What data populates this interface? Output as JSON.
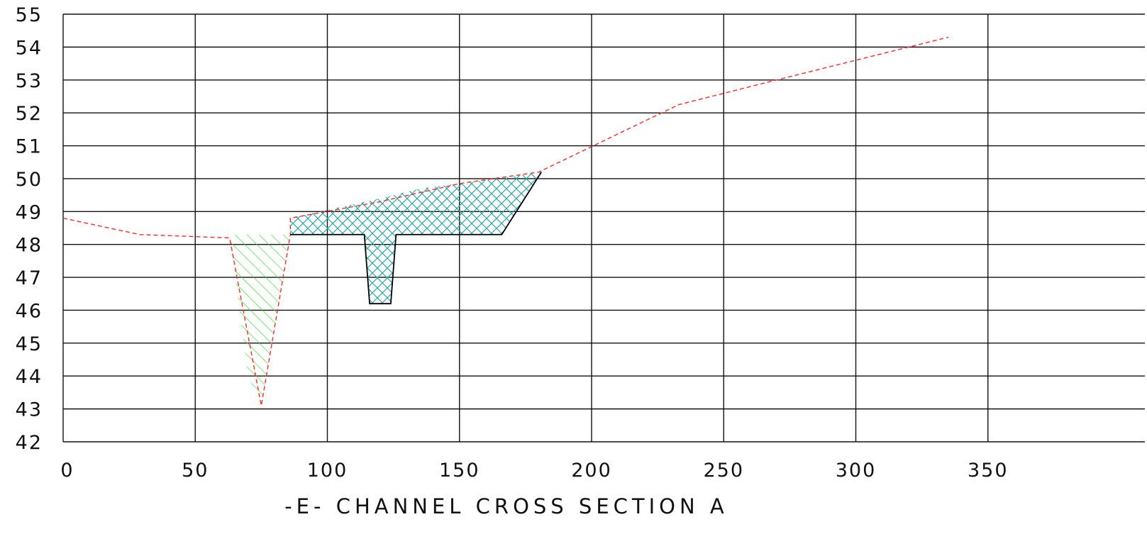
{
  "chart_data": {
    "type": "line",
    "title": "-E- CHANNEL CROSS SECTION A",
    "xlabel": "",
    "ylabel": "",
    "xlim": [
      0,
      400
    ],
    "ylim": [
      42,
      55
    ],
    "x_ticks": [
      "0",
      "50",
      "100",
      "150",
      "200",
      "250",
      "300",
      "350"
    ],
    "y_ticks": [
      "42",
      "43",
      "44",
      "45",
      "46",
      "47",
      "48",
      "49",
      "50",
      "51",
      "52",
      "53",
      "54",
      "55"
    ],
    "grid": true,
    "series": [
      {
        "role": "existing-ground",
        "style": "dashed",
        "color": "#ff2a2a",
        "x": [
          0,
          29,
          63,
          75,
          86,
          86,
          120,
          150,
          180,
          233,
          270,
          335
        ],
        "y": [
          48.8,
          48.3,
          48.2,
          43.1,
          48.3,
          48.8,
          49.3,
          49.85,
          50.2,
          52.25,
          53.0,
          54.3
        ]
      },
      {
        "role": "proposed-section",
        "style": "solid",
        "color": "#000000",
        "x": [
          86,
          114,
          116,
          124,
          126,
          166,
          181
        ],
        "y": [
          48.3,
          48.3,
          46.2,
          46.2,
          48.3,
          48.3,
          50.2
        ]
      }
    ],
    "regions": [
      {
        "role": "cut-area",
        "pattern": "crosshatch",
        "color": "#2aa6a6",
        "x": [
          86,
          86,
          100,
          120,
          135,
          150,
          165,
          181,
          166,
          126,
          124,
          116,
          114
        ],
        "y": [
          48.3,
          48.8,
          49.05,
          49.4,
          49.7,
          49.85,
          50.0,
          50.2,
          48.3,
          48.3,
          46.2,
          46.2,
          48.3
        ]
      },
      {
        "role": "fill-area",
        "pattern": "diagonal",
        "color": "#33dd33",
        "x": [
          63,
          86,
          75,
          70
        ],
        "y": [
          48.3,
          48.3,
          43.1,
          44.0
        ]
      }
    ]
  }
}
